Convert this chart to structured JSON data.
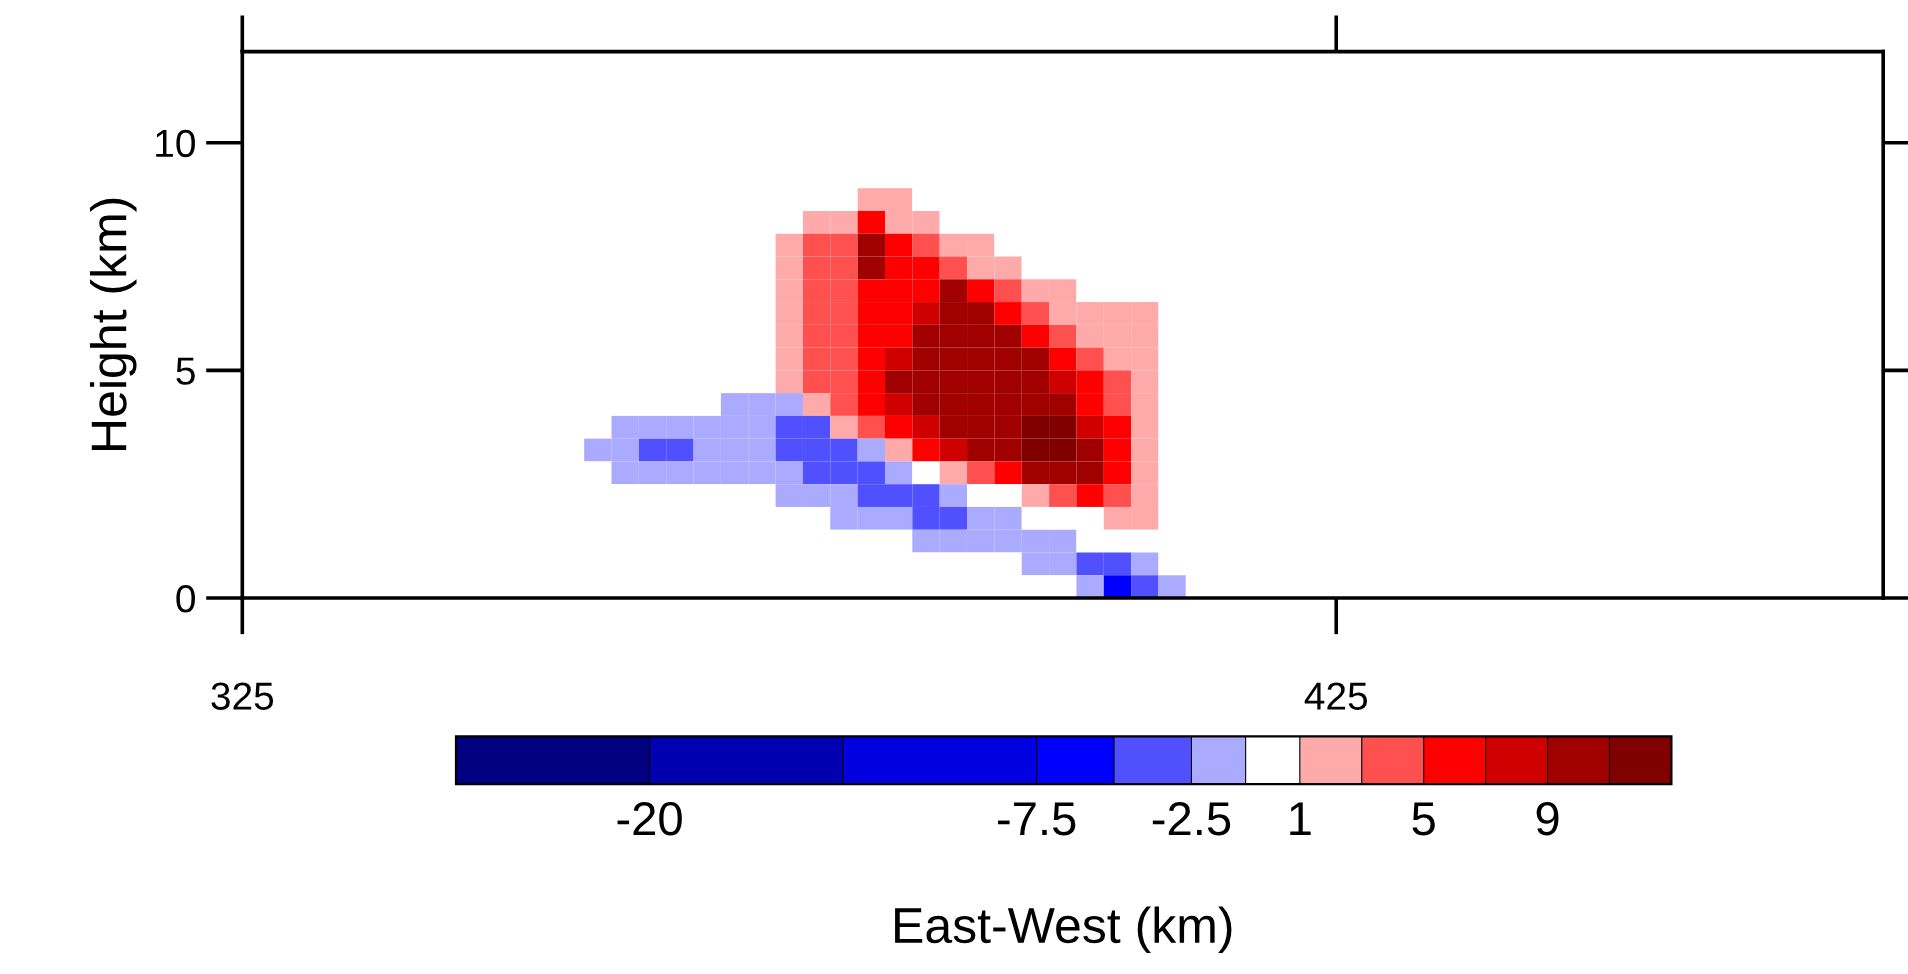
{
  "chart_data": {
    "type": "heatmap",
    "xlabel": "East-West (km)",
    "ylabel": "Height (km)",
    "x": [
      355,
      357.5,
      360,
      362.5,
      365,
      367.5,
      370,
      372.5,
      375,
      377.5,
      380,
      382.5,
      385,
      387.5,
      390,
      392.5,
      395,
      397.5,
      400,
      402.5,
      405,
      407.5,
      410,
      412.5
    ],
    "y": [
      9.25,
      8.75,
      8.25,
      7.75,
      7.25,
      6.75,
      6.25,
      5.75,
      5.25,
      4.75,
      4.25,
      3.75,
      3.25,
      2.75,
      2.25,
      1.75,
      1.25,
      0.75,
      0.25
    ],
    "cells": [
      [
        0,
        0,
        0,
        0,
        0,
        0,
        0,
        0,
        0,
        0,
        0,
        0,
        0,
        0,
        0,
        0,
        0,
        0,
        0,
        0,
        0,
        0,
        0,
        0
      ],
      [
        0,
        0,
        0,
        0,
        0,
        0,
        0,
        0,
        0,
        0,
        0,
        2,
        2,
        0,
        0,
        0,
        0,
        0,
        0,
        0,
        0,
        0,
        0,
        0
      ],
      [
        0,
        0,
        0,
        0,
        0,
        0,
        0,
        0,
        0,
        2,
        2,
        6,
        2,
        2,
        0,
        0,
        0,
        0,
        0,
        0,
        0,
        0,
        0,
        0
      ],
      [
        0,
        0,
        0,
        0,
        0,
        0,
        0,
        0,
        2,
        4,
        4,
        10,
        6,
        4,
        2,
        2,
        0,
        0,
        0,
        0,
        0,
        0,
        0,
        0
      ],
      [
        0,
        0,
        0,
        0,
        0,
        0,
        0,
        0,
        2,
        4,
        4,
        10,
        6,
        6,
        4,
        2,
        2,
        0,
        0,
        0,
        0,
        0,
        0,
        0
      ],
      [
        0,
        0,
        0,
        0,
        0,
        0,
        0,
        0,
        2,
        4,
        4,
        6,
        6,
        6,
        10,
        6,
        4,
        2,
        2,
        0,
        0,
        0,
        0,
        0
      ],
      [
        0,
        0,
        0,
        0,
        0,
        0,
        0,
        0,
        2,
        4,
        4,
        6,
        6,
        8,
        10,
        10,
        6,
        4,
        2,
        2,
        2,
        2,
        0,
        0
      ],
      [
        0,
        0,
        0,
        0,
        0,
        0,
        0,
        0,
        2,
        4,
        4,
        6,
        6,
        10,
        10,
        10,
        10,
        6,
        4,
        2,
        2,
        2,
        0,
        0
      ],
      [
        0,
        0,
        0,
        0,
        0,
        0,
        0,
        0,
        2,
        4,
        4,
        6,
        8,
        10,
        10,
        10,
        10,
        10,
        6,
        4,
        2,
        2,
        0,
        0
      ],
      [
        0,
        0,
        0,
        0,
        0,
        0,
        0,
        0,
        2,
        4,
        4,
        6,
        10,
        10,
        10,
        10,
        10,
        10,
        8,
        6,
        4,
        2,
        0,
        0
      ],
      [
        0,
        0,
        0,
        0,
        0,
        0,
        -1.75,
        -1.75,
        -1.75,
        2,
        4,
        6,
        8,
        10,
        10,
        10,
        10,
        10,
        10,
        6,
        4,
        2,
        0,
        0
      ],
      [
        0,
        0,
        -1.75,
        -1.75,
        -1.75,
        -1.75,
        -1.75,
        -1.75,
        -4,
        -4,
        2,
        4,
        6,
        8,
        10,
        10,
        10,
        12,
        12,
        8,
        6,
        2,
        0,
        0
      ],
      [
        0,
        -1.75,
        -1.75,
        -4,
        -4,
        -1.75,
        -1.75,
        -1.75,
        -4,
        -4,
        -4,
        -1.75,
        2,
        6,
        8,
        10,
        10,
        12,
        12,
        10,
        6,
        2,
        0,
        0
      ],
      [
        0,
        0,
        -1.75,
        -1.75,
        -1.75,
        -1.75,
        -1.75,
        -1.75,
        -1.75,
        -4,
        -4,
        -4,
        -1.75,
        0,
        2,
        4,
        6,
        10,
        10,
        10,
        6,
        2,
        0,
        0
      ],
      [
        0,
        0,
        0,
        0,
        0,
        0,
        0,
        0,
        -1.75,
        -1.75,
        -1.75,
        -4,
        -4,
        -4,
        -1.75,
        0,
        0,
        2,
        4,
        6,
        4,
        2,
        0,
        0
      ],
      [
        0,
        0,
        0,
        0,
        0,
        0,
        0,
        0,
        0,
        0,
        -1.75,
        -1.75,
        -1.75,
        -4,
        -4,
        -1.75,
        -1.75,
        0,
        0,
        0,
        2,
        2,
        0,
        0
      ],
      [
        0,
        0,
        0,
        0,
        0,
        0,
        0,
        0,
        0,
        0,
        0,
        0,
        0,
        -1.75,
        -1.75,
        -1.75,
        -1.75,
        -1.75,
        -1.75,
        0,
        0,
        0,
        0,
        0
      ],
      [
        0,
        0,
        0,
        0,
        0,
        0,
        0,
        0,
        0,
        0,
        0,
        0,
        0,
        0,
        0,
        0,
        0,
        -1.75,
        -1.75,
        -4,
        -4,
        -1.75,
        0,
        0
      ],
      [
        0,
        0,
        0,
        0,
        0,
        0,
        0,
        0,
        0,
        0,
        0,
        0,
        0,
        0,
        0,
        0,
        0,
        0,
        0,
        -1.75,
        -6,
        -4,
        -1.75,
        0
      ]
    ],
    "xlim": [
      325,
      475
    ],
    "ylim": [
      0,
      12
    ],
    "xticks": [
      325,
      425
    ],
    "yticks": [
      0,
      5,
      10
    ],
    "clim": [
      -26.25,
      13
    ],
    "cticks": [
      -20,
      -7.5,
      -2.5,
      1,
      5,
      9
    ],
    "colors": [
      "#000080",
      "#0000b0",
      "#0000e0",
      "#0000ff",
      "#5050ff",
      "#aaaaff",
      "#ffffff",
      "#ffaaaa",
      "#ff5050",
      "#ff0000",
      "#d00000",
      "#a00000",
      "#800000"
    ]
  }
}
